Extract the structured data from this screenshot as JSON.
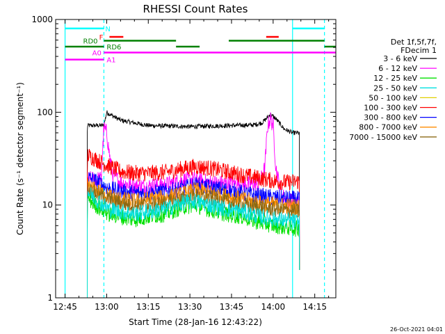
{
  "footer": {
    "timestamp": "26-Oct-2021 04:01"
  },
  "chart_data": {
    "type": "line",
    "title": "RHESSI Count Rates",
    "xlabel": "Start Time (28-Jan-16 12:43:22)",
    "ylabel": "Count Rate (s⁻¹ detector segment⁻¹)",
    "x_range_minutes": [
      -3.4,
      97.6
    ],
    "y_scale": "log",
    "ylim": [
      1,
      1000
    ],
    "x_ticks": [
      {
        "label": "12:45",
        "min": 0
      },
      {
        "label": "13:00",
        "min": 15
      },
      {
        "label": "13:15",
        "min": 30
      },
      {
        "label": "13:30",
        "min": 45
      },
      {
        "label": "13:45",
        "min": 60
      },
      {
        "label": "14:00",
        "min": 75
      },
      {
        "label": "14:15",
        "min": 90
      }
    ],
    "y_ticks": [
      {
        "label": "1",
        "value": 1
      },
      {
        "label": "10",
        "value": 10
      },
      {
        "label": "100",
        "value": 100
      },
      {
        "label": "1000",
        "value": 1000
      }
    ],
    "legend": {
      "position": "right",
      "header": [
        "Det 1f,5f,7f,",
        "FDecim 1"
      ],
      "items": [
        {
          "label": "3 - 6 keV",
          "color": "#000000"
        },
        {
          "label": "6 - 12 keV",
          "color": "#ff00ff"
        },
        {
          "label": "12 - 25 keV",
          "color": "#00e000"
        },
        {
          "label": "25 - 50 keV",
          "color": "#00e0e0"
        },
        {
          "label": "50 - 100 keV",
          "color": "#e0d000"
        },
        {
          "label": "100 - 300 keV",
          "color": "#ff0000"
        },
        {
          "label": "300 - 800 keV",
          "color": "#0000ff"
        },
        {
          "label": "800 - 7000 keV",
          "color": "#ff8c00"
        },
        {
          "label": "7000 - 15000 keV",
          "color": "#8b6914"
        }
      ]
    },
    "series": [
      {
        "name": "3 - 6 keV",
        "color": "#000000",
        "x": [
          8,
          14,
          15,
          17,
          20,
          30,
          45,
          60,
          68,
          71,
          73,
          74,
          76,
          79,
          82,
          84.5
        ],
        "y": [
          72,
          72,
          100,
          92,
          82,
          72,
          70,
          72,
          73,
          77,
          88,
          95,
          85,
          66,
          60,
          60
        ]
      },
      {
        "name": "6 - 12 keV",
        "color": "#ff00ff",
        "x": [
          8,
          13,
          14,
          15,
          16,
          17,
          20,
          25,
          30,
          36,
          42,
          47,
          52,
          58,
          64,
          70,
          72,
          73,
          74,
          75,
          76,
          78,
          80,
          84.5
        ],
        "y": [
          19,
          19,
          68,
          60,
          35,
          22,
          17.5,
          16,
          16,
          16.5,
          18.5,
          19,
          17.5,
          17,
          17,
          16.5,
          25,
          72,
          85,
          72,
          25,
          13,
          11,
          10.5
        ]
      },
      {
        "name": "100 - 300 keV",
        "color": "#ff0000",
        "x": [
          8,
          12,
          16,
          20,
          25,
          30,
          36,
          42,
          47,
          52,
          58,
          64,
          70,
          76,
          80,
          84.5
        ],
        "y": [
          35,
          30,
          26,
          23,
          22,
          22,
          22.5,
          24.5,
          26,
          25,
          23,
          21,
          19.5,
          18,
          17.5,
          18
        ]
      },
      {
        "name": "300 - 800 keV",
        "color": "#0000ff",
        "x": [
          8,
          12,
          16,
          20,
          25,
          30,
          36,
          42,
          47,
          52,
          58,
          64,
          70,
          76,
          84.5
        ],
        "y": [
          20,
          17.5,
          15,
          14,
          13.5,
          13.5,
          14,
          15,
          16.5,
          15.5,
          14.5,
          13.5,
          12.5,
          12,
          11.5
        ]
      },
      {
        "name": "800 - 7000 keV",
        "color": "#ff8c00",
        "x": [
          8,
          12,
          16,
          20,
          25,
          30,
          36,
          42,
          47,
          52,
          58,
          64,
          70,
          76,
          84.5
        ],
        "y": [
          16,
          14,
          12.5,
          11.5,
          11,
          11.5,
          12,
          13,
          14.5,
          13.5,
          12.5,
          11.5,
          10.5,
          10,
          9.5
        ]
      },
      {
        "name": "7000 - 15000 keV",
        "color": "#8b6914",
        "x": [
          8,
          12,
          16,
          20,
          25,
          30,
          36,
          42,
          47,
          52,
          58,
          64,
          70,
          76,
          84.5
        ],
        "y": [
          15,
          13,
          11.5,
          10.5,
          10,
          10,
          10.5,
          11.5,
          12.5,
          12,
          11,
          10,
          9.5,
          9,
          8.5
        ]
      },
      {
        "name": "12 - 25 keV",
        "color": "#00e000",
        "x": [
          8,
          12,
          16,
          20,
          25,
          30,
          36,
          42,
          47,
          52,
          58,
          64,
          70,
          76,
          84.5
        ],
        "y": [
          12,
          9.5,
          8,
          7.5,
          7,
          7.5,
          8,
          9.5,
          10,
          9,
          8,
          7.5,
          6.5,
          6,
          5.5
        ]
      },
      {
        "name": "25 - 50 keV",
        "color": "#00e0e0",
        "x": [
          8,
          12,
          16,
          20,
          25,
          30,
          36,
          42,
          47,
          52,
          58,
          64,
          70,
          76,
          84.5
        ],
        "y": [
          14,
          11,
          9,
          8.5,
          8,
          8.5,
          9,
          10.5,
          11,
          10,
          9,
          8.5,
          7.5,
          7,
          6.5
        ]
      }
    ],
    "vertical_lines": [
      {
        "x": 0,
        "color": "#00ffff",
        "style": "solid"
      },
      {
        "x": 14,
        "color": "#00ffff",
        "style": "dashed"
      },
      {
        "x": 82,
        "color": "#00ffff",
        "style": "solid"
      },
      {
        "x": 93.5,
        "color": "#00ffff",
        "style": "dashed"
      }
    ],
    "flags": [
      {
        "label": "N",
        "color": "#00ffff",
        "y": 800,
        "label_x": 14.5,
        "segments": [
          [
            0,
            14
          ],
          [
            82,
            93.5
          ]
        ]
      },
      {
        "label": "F",
        "color": "#ff0000",
        "y": 650,
        "label_x": 12.3,
        "segments": [
          [
            16,
            21
          ],
          [
            72.5,
            77
          ]
        ]
      },
      {
        "label": "RD0",
        "color": "#008000",
        "y": 590,
        "label_x": 6.5,
        "segments": [
          [
            14,
            40
          ],
          [
            59,
            93.5
          ]
        ]
      },
      {
        "label": "RD6",
        "color": "#008000",
        "y": 510,
        "label_x": 15,
        "segments": [
          [
            0,
            14
          ],
          [
            40,
            48.5
          ],
          [
            93.5,
            97.6
          ]
        ]
      },
      {
        "label": "A0",
        "color": "#ff00ff",
        "y": 440,
        "label_x": 9.8,
        "segments": [
          [
            14,
            97.6
          ]
        ]
      },
      {
        "label": "A1",
        "color": "#ff00ff",
        "y": 370,
        "label_x": 15,
        "segments": [
          [
            0,
            14
          ]
        ]
      }
    ]
  }
}
